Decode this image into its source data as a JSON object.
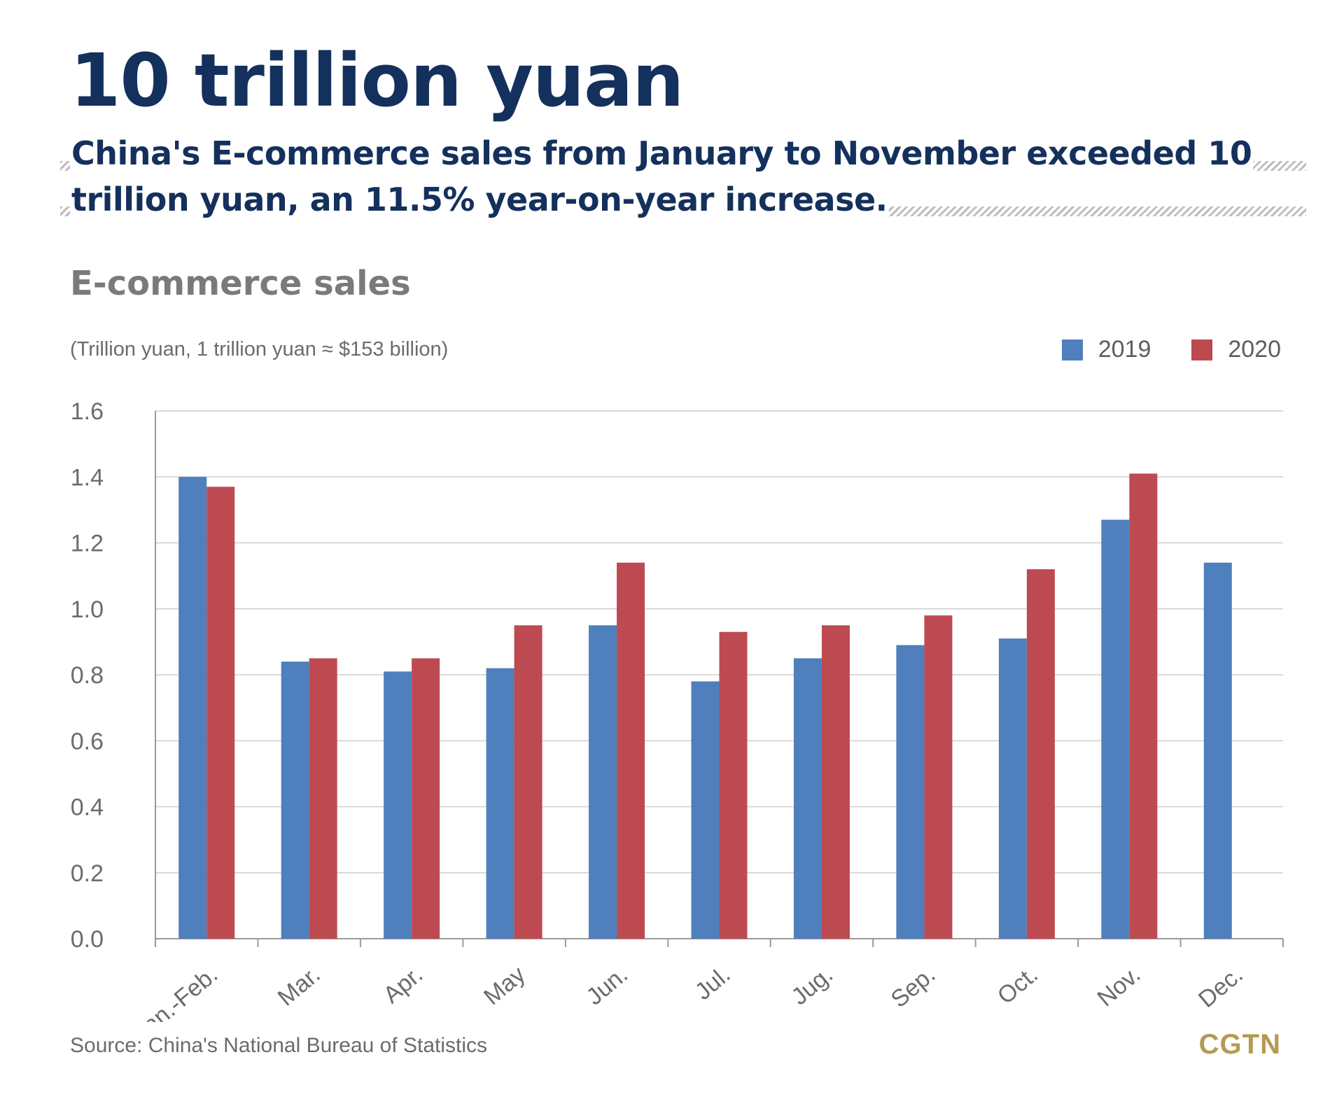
{
  "header": {
    "headline": "10 trillion yuan",
    "subheadline_line1": "China's E-commerce sales from January to November exceeded 10",
    "subheadline_line2": "trillion yuan, an 11.5% year-on-year increase."
  },
  "chart_data": {
    "type": "bar",
    "title": "E-commerce sales",
    "subtitle": "(Trillion yuan, 1 trillion yuan ≈ $153 billion)",
    "categories": [
      "Jan.-Feb.",
      "Mar.",
      "Apr.",
      "May",
      "Jun.",
      "Jul.",
      "Jug.",
      "Sep.",
      "Oct.",
      "Nov.",
      "Dec."
    ],
    "series": [
      {
        "name": "2019",
        "color": "#4f7fbc",
        "values": [
          1.4,
          0.84,
          0.81,
          0.82,
          0.95,
          0.78,
          0.85,
          0.89,
          0.91,
          1.27,
          1.14
        ]
      },
      {
        "name": "2020",
        "color": "#be4a51",
        "values": [
          1.37,
          0.85,
          0.85,
          0.95,
          1.14,
          0.93,
          0.95,
          0.98,
          1.12,
          1.41,
          null
        ]
      }
    ],
    "yticks": [
      "0.0",
      "0.2",
      "0.4",
      "0.6",
      "0.8",
      "1.0",
      "1.2",
      "1.4",
      "1.6"
    ],
    "ylim": [
      0,
      1.6
    ],
    "grid": true,
    "legend_position": "top-right",
    "xlabel": "",
    "ylabel": ""
  },
  "footer": {
    "source": "Source: China's National Bureau of Statistics",
    "logo": "CGTN"
  },
  "colors": {
    "headline": "#14305c",
    "series_2019": "#4f7fbc",
    "series_2020": "#be4a51",
    "logo": "#b49a52"
  }
}
